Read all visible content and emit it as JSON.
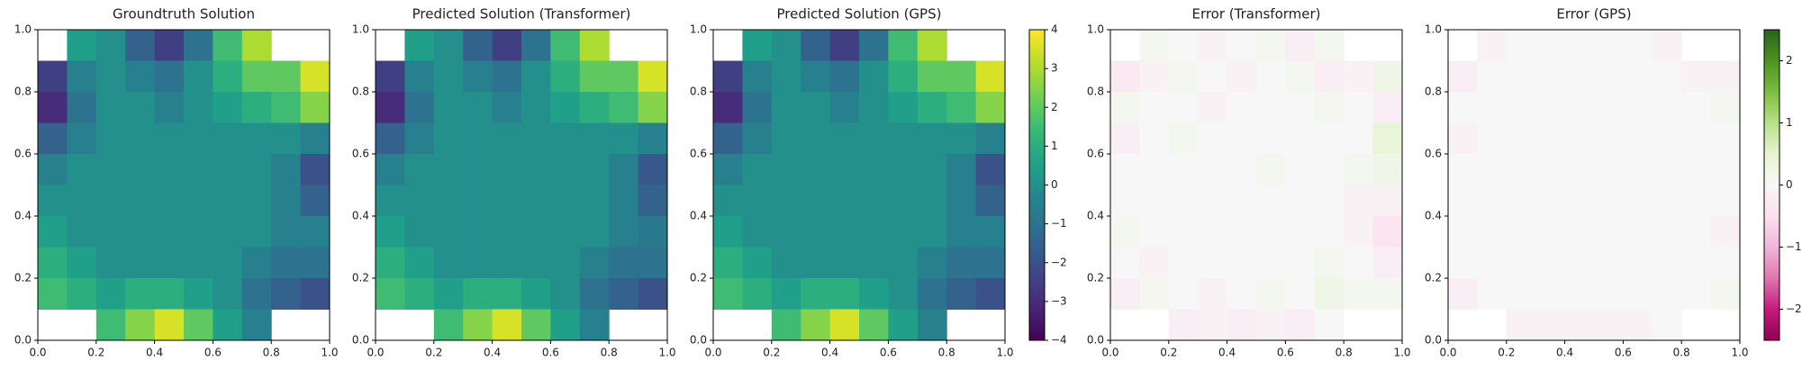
{
  "chart_data": [
    {
      "type": "heatmap",
      "title": "Groundtruth Solution",
      "colormap": "viridis",
      "zlim": [
        -4,
        4
      ],
      "xlim": [
        0,
        1
      ],
      "ylim": [
        0,
        1
      ],
      "xticks": [
        {
          "value": 0,
          "label": "0.0"
        },
        {
          "value": 0.2,
          "label": "0.2"
        },
        {
          "value": 0.4,
          "label": "0.4"
        },
        {
          "value": 0.6,
          "label": "0.6"
        },
        {
          "value": 0.8,
          "label": "0.8"
        },
        {
          "value": 1,
          "label": "1.0"
        }
      ],
      "yticks": [
        {
          "value": 0,
          "label": "0.0"
        },
        {
          "value": 0.2,
          "label": "0.2"
        },
        {
          "value": 0.4,
          "label": "0.4"
        },
        {
          "value": 0.6,
          "label": "0.6"
        },
        {
          "value": 0.8,
          "label": "0.8"
        },
        {
          "value": 1,
          "label": "1.0"
        }
      ],
      "values": [
        [
          null,
          0.5,
          0,
          -1.5,
          -2.5,
          -1,
          1.5,
          3,
          null,
          null
        ],
        [
          -2.5,
          -0.5,
          0,
          -0.5,
          -1,
          0,
          1,
          2,
          2,
          3.5
        ],
        [
          -3,
          -1,
          0,
          0,
          -0.5,
          0,
          0.5,
          1,
          1.5,
          2.5
        ],
        [
          -1.5,
          -0.5,
          0,
          0,
          0,
          0,
          0,
          0,
          0,
          -0.5
        ],
        [
          -0.5,
          0,
          0,
          0,
          0,
          0,
          0,
          0,
          -0.5,
          -2
        ],
        [
          0,
          0,
          0,
          0,
          0,
          0,
          0,
          0,
          -0.5,
          -1.5
        ],
        [
          0.5,
          0,
          0,
          0,
          0,
          0,
          0,
          0,
          -0.5,
          -0.5
        ],
        [
          1,
          0.5,
          0,
          0,
          0,
          0,
          0,
          -0.5,
          -1,
          -1
        ],
        [
          1.5,
          1,
          0.5,
          1,
          1,
          0.5,
          0,
          -1,
          -1.5,
          -2
        ],
        [
          null,
          null,
          1.5,
          2.5,
          3.5,
          2,
          0.5,
          -0.5,
          null,
          null
        ]
      ]
    },
    {
      "type": "heatmap",
      "title": "Predicted Solution (Transformer)",
      "colormap": "viridis",
      "zlim": [
        -4,
        4
      ],
      "xlim": [
        0,
        1
      ],
      "ylim": [
        0,
        1
      ],
      "xticks": [
        {
          "value": 0,
          "label": "0.0"
        },
        {
          "value": 0.2,
          "label": "0.2"
        },
        {
          "value": 0.4,
          "label": "0.4"
        },
        {
          "value": 0.6,
          "label": "0.6"
        },
        {
          "value": 0.8,
          "label": "0.8"
        },
        {
          "value": 1,
          "label": "1.0"
        }
      ],
      "yticks": [
        {
          "value": 0,
          "label": "0.0"
        },
        {
          "value": 0.2,
          "label": "0.2"
        },
        {
          "value": 0.4,
          "label": "0.4"
        },
        {
          "value": 0.6,
          "label": "0.6"
        },
        {
          "value": 0.8,
          "label": "0.8"
        },
        {
          "value": 1,
          "label": "1.0"
        }
      ],
      "values": [
        [
          null,
          0.5,
          0,
          -1.5,
          -2.5,
          -1,
          1.5,
          3,
          null,
          null
        ],
        [
          -2.5,
          -0.5,
          0,
          -0.5,
          -1,
          0,
          1,
          2,
          2,
          3.5
        ],
        [
          -3,
          -1,
          0,
          0,
          -0.5,
          0,
          0.5,
          1,
          1.5,
          2.5
        ],
        [
          -1.5,
          -0.5,
          0,
          0,
          0,
          0,
          0,
          0,
          0,
          -0.5
        ],
        [
          -0.5,
          0,
          0,
          0,
          0,
          0,
          0,
          0,
          -0.5,
          -1.8
        ],
        [
          0,
          0,
          0,
          0,
          0,
          0,
          0,
          0,
          -0.5,
          -1.5
        ],
        [
          0.5,
          0,
          0,
          0,
          0,
          0,
          0,
          0,
          -0.5,
          -0.8
        ],
        [
          1,
          0.5,
          0,
          0,
          0,
          0,
          0,
          -0.5,
          -1,
          -1
        ],
        [
          1.5,
          1,
          0.5,
          1,
          1,
          0.5,
          0,
          -1,
          -1.5,
          -2
        ],
        [
          null,
          null,
          1.5,
          2.5,
          3.5,
          2,
          0.5,
          -0.5,
          null,
          null
        ]
      ]
    },
    {
      "type": "heatmap",
      "title": "Predicted Solution (GPS)",
      "colormap": "viridis",
      "zlim": [
        -4,
        4
      ],
      "xlim": [
        0,
        1
      ],
      "ylim": [
        0,
        1
      ],
      "colorbar": true,
      "zticks": [
        {
          "value": -4,
          "label": "−4"
        },
        {
          "value": -3,
          "label": "−3"
        },
        {
          "value": -2,
          "label": "−2"
        },
        {
          "value": -1,
          "label": "−1"
        },
        0,
        1,
        2,
        3,
        4
      ],
      "xticks": [
        {
          "value": 0,
          "label": "0.0"
        },
        {
          "value": 0.2,
          "label": "0.2"
        },
        {
          "value": 0.4,
          "label": "0.4"
        },
        {
          "value": 0.6,
          "label": "0.6"
        },
        {
          "value": 0.8,
          "label": "0.8"
        },
        {
          "value": 1,
          "label": "1.0"
        }
      ],
      "yticks": [
        {
          "value": 0,
          "label": "0.0"
        },
        {
          "value": 0.2,
          "label": "0.2"
        },
        {
          "value": 0.4,
          "label": "0.4"
        },
        {
          "value": 0.6,
          "label": "0.6"
        },
        {
          "value": 0.8,
          "label": "0.8"
        },
        {
          "value": 1,
          "label": "1.0"
        }
      ],
      "values": [
        [
          null,
          0.5,
          0,
          -1.5,
          -2.5,
          -1,
          1.5,
          3,
          null,
          null
        ],
        [
          -2.5,
          -0.5,
          0,
          -0.5,
          -1,
          0,
          1,
          2,
          2,
          3.5
        ],
        [
          -3,
          -1,
          0,
          0,
          -0.5,
          0,
          0.5,
          1,
          1.5,
          2.5
        ],
        [
          -1.5,
          -0.5,
          0,
          0,
          0,
          0,
          0,
          0,
          0,
          -0.5
        ],
        [
          -0.5,
          0,
          0,
          0,
          0,
          0,
          0,
          0,
          -0.5,
          -2
        ],
        [
          0,
          0,
          0,
          0,
          0,
          0,
          0,
          0,
          -0.5,
          -1.5
        ],
        [
          0.5,
          0,
          0,
          0,
          0,
          0,
          0,
          0,
          -0.5,
          -0.5
        ],
        [
          1,
          0.5,
          0,
          0,
          0,
          0,
          0,
          -0.5,
          -1,
          -1
        ],
        [
          1.5,
          1,
          0.5,
          1,
          1,
          0.5,
          0,
          -1,
          -1.5,
          -2
        ],
        [
          null,
          null,
          1.5,
          2.5,
          3.5,
          2,
          0.5,
          -0.5,
          null,
          null
        ]
      ]
    },
    {
      "type": "heatmap",
      "title": "Error (Transformer)",
      "colormap": "PiYG",
      "zlim": [
        -2.5,
        2.5
      ],
      "xlim": [
        0,
        1
      ],
      "ylim": [
        0,
        1
      ],
      "xticks": [
        {
          "value": 0,
          "label": "0.0"
        },
        {
          "value": 0.2,
          "label": "0.2"
        },
        {
          "value": 0.4,
          "label": "0.4"
        },
        {
          "value": 0.6,
          "label": "0.6"
        },
        {
          "value": 0.8,
          "label": "0.8"
        },
        {
          "value": 1,
          "label": "1.0"
        }
      ],
      "yticks": [
        {
          "value": 0,
          "label": "0.0"
        },
        {
          "value": 0.2,
          "label": "0.2"
        },
        {
          "value": 0.4,
          "label": "0.4"
        },
        {
          "value": 0.6,
          "label": "0.6"
        },
        {
          "value": 0.8,
          "label": "0.8"
        },
        {
          "value": 1,
          "label": "1.0"
        }
      ],
      "values": [
        [
          null,
          0.1,
          0,
          -0.1,
          0,
          0.1,
          -0.2,
          0.1,
          null,
          null
        ],
        [
          -0.3,
          -0.1,
          0.1,
          0,
          -0.1,
          0,
          0.1,
          -0.2,
          -0.1,
          0.2
        ],
        [
          0.1,
          0,
          0,
          -0.1,
          0,
          0,
          0,
          0.1,
          0,
          -0.2
        ],
        [
          -0.2,
          0,
          0.1,
          0,
          0,
          0,
          0,
          0,
          0,
          0.4
        ],
        [
          0,
          0,
          0,
          0,
          0,
          0.1,
          0,
          0,
          0.1,
          0.2
        ],
        [
          0,
          0,
          0,
          0,
          0,
          0,
          0,
          0,
          -0.1,
          -0.1
        ],
        [
          0.1,
          0,
          0,
          0,
          0,
          0,
          0,
          0,
          -0.1,
          -0.4
        ],
        [
          0,
          -0.1,
          0,
          0,
          0,
          0,
          0,
          0.1,
          0,
          -0.2
        ],
        [
          -0.2,
          0.1,
          0,
          -0.1,
          0,
          0.1,
          0,
          0.2,
          0.1,
          0.1
        ],
        [
          null,
          null,
          -0.2,
          -0.1,
          -0.2,
          -0.1,
          -0.2,
          0,
          null,
          null
        ]
      ]
    },
    {
      "type": "heatmap",
      "title": "Error (GPS)",
      "colormap": "PiYG",
      "zlim": [
        -2.5,
        2.5
      ],
      "xlim": [
        0,
        1
      ],
      "ylim": [
        0,
        1
      ],
      "colorbar": true,
      "zticks": [
        {
          "value": -2,
          "label": "−2"
        },
        {
          "value": -1,
          "label": "−1"
        },
        0,
        1,
        2
      ],
      "xticks": [
        {
          "value": 0,
          "label": "0.0"
        },
        {
          "value": 0.2,
          "label": "0.2"
        },
        {
          "value": 0.4,
          "label": "0.4"
        },
        {
          "value": 0.6,
          "label": "0.6"
        },
        {
          "value": 0.8,
          "label": "0.8"
        },
        {
          "value": 1,
          "label": "1.0"
        }
      ],
      "yticks": [
        {
          "value": 0,
          "label": "0.0"
        },
        {
          "value": 0.2,
          "label": "0.2"
        },
        {
          "value": 0.4,
          "label": "0.4"
        },
        {
          "value": 0.6,
          "label": "0.6"
        },
        {
          "value": 0.8,
          "label": "0.8"
        },
        {
          "value": 1,
          "label": "1.0"
        }
      ],
      "values": [
        [
          null,
          -0.1,
          0,
          0,
          0,
          0,
          0,
          -0.1,
          null,
          null
        ],
        [
          -0.2,
          0,
          0,
          0,
          0,
          0,
          0,
          0,
          -0.1,
          -0.1
        ],
        [
          0,
          0,
          0,
          0,
          0,
          0,
          0,
          0,
          0,
          0.1
        ],
        [
          -0.1,
          0,
          0,
          0,
          0,
          0,
          0,
          0,
          0,
          0
        ],
        [
          0,
          0,
          0,
          0,
          0,
          0,
          0,
          0,
          0,
          0
        ],
        [
          0,
          0,
          0,
          0,
          0,
          0,
          0,
          0,
          0,
          0
        ],
        [
          0,
          0,
          0,
          0,
          0,
          0,
          0,
          0,
          0,
          -0.1
        ],
        [
          0,
          0,
          0,
          0,
          0,
          0,
          0,
          0,
          0,
          0
        ],
        [
          -0.2,
          0,
          0,
          0,
          0,
          0,
          0,
          0,
          0,
          0.1
        ],
        [
          null,
          null,
          -0.1,
          -0.1,
          -0.1,
          -0.1,
          -0.1,
          0,
          null,
          null
        ]
      ]
    }
  ]
}
